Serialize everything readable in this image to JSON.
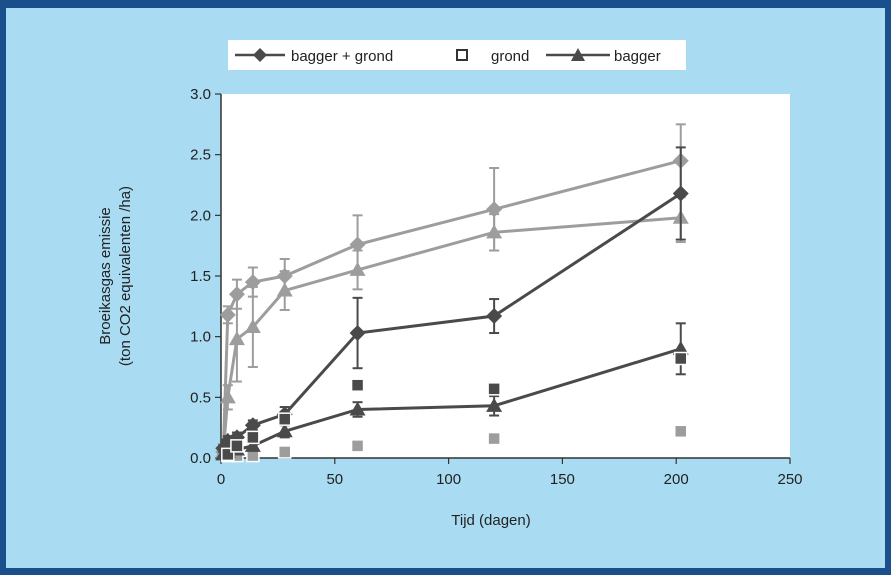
{
  "chart_data": {
    "type": "line",
    "title": "",
    "xlabel": "Tijd (dagen)",
    "ylabel_line1": "Broeikasgas emissie",
    "ylabel_line2": "(ton CO2 equivalenten /ha)",
    "xlim": [
      0,
      250
    ],
    "ylim": [
      0,
      3.0
    ],
    "xticks": [
      0,
      50,
      100,
      150,
      200,
      250
    ],
    "yticks": [
      "0.0",
      "0.5",
      "1.0",
      "1.5",
      "2.0",
      "2.5",
      "3.0"
    ],
    "grid": false,
    "legend_position": "top",
    "legend": [
      "bagger + grond",
      "grond",
      "bagger"
    ],
    "series": [
      {
        "name": "bagger + grond",
        "group": "light",
        "marker": "diamond",
        "color": "#9d9d9d",
        "points": [
          {
            "x": 1,
            "y": 0.05,
            "err": 0.03
          },
          {
            "x": 3,
            "y": 1.18,
            "err": 0.07
          },
          {
            "x": 7,
            "y": 1.35,
            "err": 0.12
          },
          {
            "x": 14,
            "y": 1.45,
            "err": 0.12
          },
          {
            "x": 28,
            "y": 1.5,
            "err": 0.14
          },
          {
            "x": 60,
            "y": 1.76,
            "err": 0.24
          },
          {
            "x": 120,
            "y": 2.05,
            "err": 0.34
          },
          {
            "x": 202,
            "y": 2.45,
            "err": 0.3
          }
        ]
      },
      {
        "name": "bagger",
        "group": "light",
        "marker": "triangle",
        "color": "#9d9d9d",
        "points": [
          {
            "x": 1,
            "y": 0.05,
            "err": 0.03
          },
          {
            "x": 3,
            "y": 0.5,
            "err": 0.1
          },
          {
            "x": 7,
            "y": 0.98,
            "err": 0.35
          },
          {
            "x": 14,
            "y": 1.08,
            "err": 0.33
          },
          {
            "x": 28,
            "y": 1.38,
            "err": 0.16
          },
          {
            "x": 60,
            "y": 1.55,
            "err": 0.16
          },
          {
            "x": 120,
            "y": 1.86,
            "err": 0.15
          },
          {
            "x": 202,
            "y": 1.98,
            "err": 0.2
          }
        ]
      },
      {
        "name": "grond",
        "group": "light",
        "marker": "square",
        "color": "#9d9d9d",
        "points": [
          {
            "x": 3,
            "y": 0.02
          },
          {
            "x": 7,
            "y": 0.02
          },
          {
            "x": 14,
            "y": 0.02
          },
          {
            "x": 28,
            "y": 0.05
          },
          {
            "x": 60,
            "y": 0.1
          },
          {
            "x": 120,
            "y": 0.16
          },
          {
            "x": 202,
            "y": 0.22
          }
        ]
      },
      {
        "name": "bagger + grond",
        "group": "dark",
        "marker": "diamond",
        "color": "#4a4a4a",
        "points": [
          {
            "x": 1,
            "y": 0.08,
            "err": 0.03
          },
          {
            "x": 3,
            "y": 0.14,
            "err": 0.04
          },
          {
            "x": 7,
            "y": 0.17,
            "err": 0.04
          },
          {
            "x": 14,
            "y": 0.27,
            "err": 0.04
          },
          {
            "x": 28,
            "y": 0.36,
            "err": 0.06
          },
          {
            "x": 60,
            "y": 1.03,
            "err": 0.29
          },
          {
            "x": 120,
            "y": 1.17,
            "err": 0.14
          },
          {
            "x": 202,
            "y": 2.18,
            "err": 0.38
          }
        ]
      },
      {
        "name": "bagger",
        "group": "dark",
        "marker": "triangle",
        "color": "#4a4a4a",
        "points": [
          {
            "x": 1,
            "y": 0.03,
            "err": 0.02
          },
          {
            "x": 3,
            "y": 0.05,
            "err": 0.02
          },
          {
            "x": 7,
            "y": 0.07,
            "err": 0.02
          },
          {
            "x": 14,
            "y": 0.1,
            "err": 0.03
          },
          {
            "x": 28,
            "y": 0.22,
            "err": 0.05
          },
          {
            "x": 60,
            "y": 0.4,
            "err": 0.06
          },
          {
            "x": 120,
            "y": 0.43,
            "err": 0.08
          },
          {
            "x": 202,
            "y": 0.9,
            "err": 0.21
          }
        ]
      },
      {
        "name": "grond",
        "group": "dark",
        "marker": "square",
        "color": "#4a4a4a",
        "points": [
          {
            "x": 3,
            "y": 0.03
          },
          {
            "x": 7,
            "y": 0.1
          },
          {
            "x": 14,
            "y": 0.17
          },
          {
            "x": 28,
            "y": 0.32
          },
          {
            "x": 60,
            "y": 0.6
          },
          {
            "x": 120,
            "y": 0.57
          },
          {
            "x": 202,
            "y": 0.82
          }
        ]
      }
    ]
  },
  "colors": {
    "border": "#1b4f8c",
    "frame": "#a9dcf2",
    "plot_background": "#ffffff",
    "legend_background": "#ffffff",
    "series_light": "#9d9d9d",
    "series_dark": "#4a4a4a"
  }
}
